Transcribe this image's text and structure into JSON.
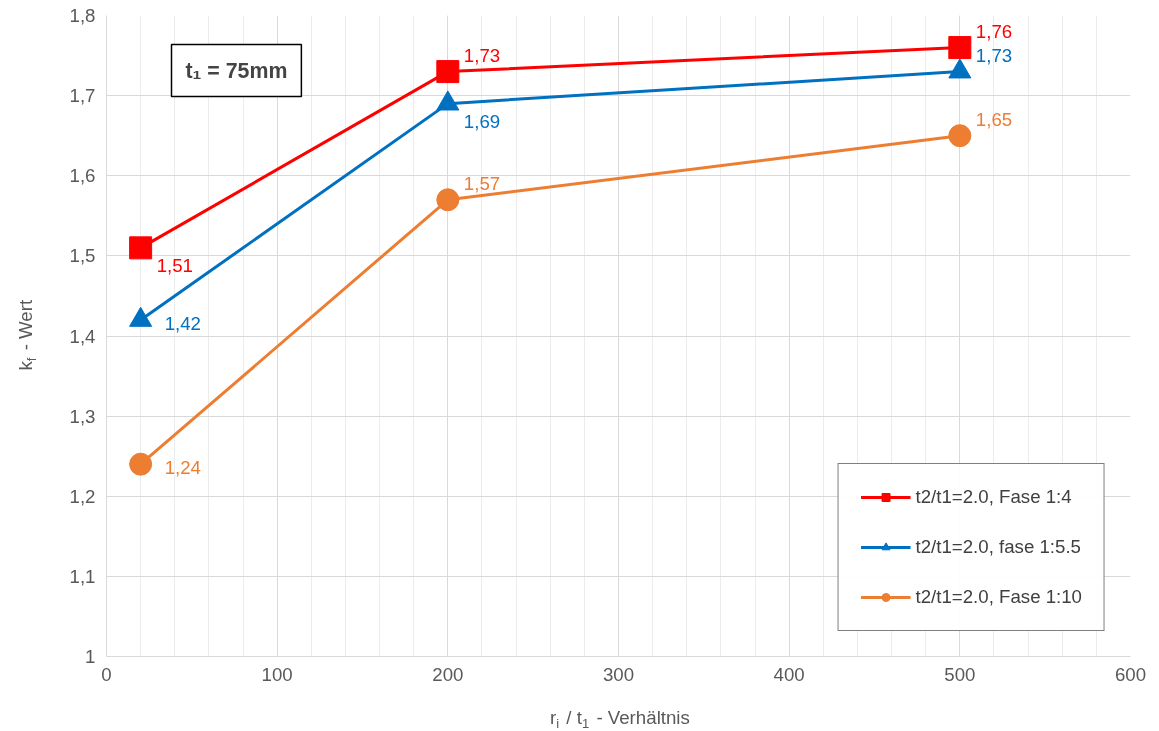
{
  "chart_data": {
    "type": "line",
    "xlabel": "r$_{i}$ / t$_{1}$ - Verhältnis",
    "ylabel": "k$_{f}$ - Wert",
    "x": [
      20,
      200,
      500
    ],
    "series": [
      {
        "name": "t2/t1=2.0, Fase 1:4",
        "color": "#ff0000",
        "marker": "square",
        "values": [
          1.51,
          1.73,
          1.76
        ],
        "value_labels": [
          "1,51",
          "1,73",
          "1,76"
        ]
      },
      {
        "name": "t2/t1=2.0, fase 1:5.5",
        "color": "#0070c0",
        "marker": "triangle",
        "values": [
          1.42,
          1.69,
          1.73
        ],
        "value_labels": [
          "1,42",
          "1,69",
          "1,73"
        ]
      },
      {
        "name": "t2/t1=2.0, Fase 1:10",
        "color": "#ed7d31",
        "marker": "circle",
        "values": [
          1.24,
          1.57,
          1.65
        ],
        "value_labels": [
          "1,24",
          "1,57",
          "1,65"
        ]
      }
    ],
    "annotations": [
      "t₁ = 75mm"
    ],
    "xlim": [
      0,
      600
    ],
    "xticks": [
      0,
      100,
      200,
      300,
      400,
      500,
      600
    ],
    "ylim": [
      1,
      1.8
    ],
    "yticks": [
      1,
      {
        "value": 1.1,
        "label": "1,1"
      },
      {
        "value": 1.2,
        "label": "1,2"
      },
      {
        "value": 1.3,
        "label": "1,3"
      },
      {
        "value": 1.4,
        "label": "1,4"
      },
      {
        "value": 1.5,
        "label": "1,5"
      },
      {
        "value": 1.6,
        "label": "1,6"
      },
      {
        "value": 1.7,
        "label": "1,7"
      },
      {
        "value": 1.8,
        "label": "1,8"
      }
    ],
    "grid": true,
    "legend": "bottom right",
    "line_style": "solid"
  }
}
